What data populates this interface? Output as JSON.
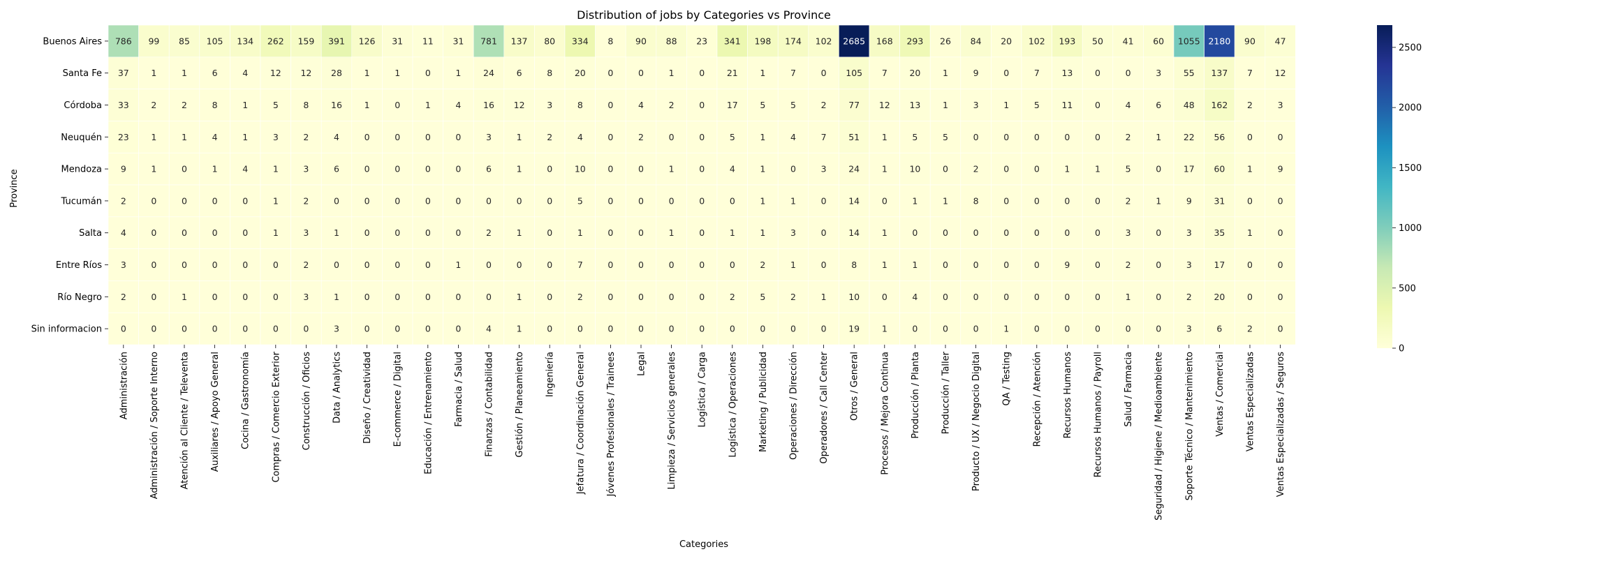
{
  "chart_data": {
    "type": "heatmap",
    "title": "Distribution of jobs by Categories vs Province",
    "xlabel": "Categories",
    "ylabel": "Province",
    "colormap": "YlGnBu",
    "colors": [
      "#ffffd9",
      "#edf8b1",
      "#c7e9b4",
      "#7fcdbb",
      "#41b6c4",
      "#1d91c0",
      "#225ea8",
      "#253494",
      "#081d58"
    ],
    "vmin": 0,
    "vmax": 2685,
    "colorbar_ticks": [
      0,
      500,
      1000,
      1500,
      2000,
      2500
    ],
    "rows": [
      "Buenos Aires",
      "Santa Fe",
      "Córdoba",
      "Neuquén",
      "Mendoza",
      "Tucumán",
      "Salta",
      "Entre Ríos",
      "Río Negro",
      "Sin informacion"
    ],
    "columns": [
      "Administración",
      "Administración / Soporte Interno",
      "Atención al Cliente / Televenta",
      "Auxiliares / Apoyo General",
      "Cocina / Gastronomía",
      "Compras / Comercio Exterior",
      "Construcción / Oficios",
      "Data / Analytics",
      "Diseño / Creatividad",
      "E-commerce / Digital",
      "Educación / Entrenamiento",
      "Farmacia / Salud",
      "Finanzas / Contabilidad",
      "Gestión / Planeamiento",
      "Ingeniería",
      "Jefatura / Coordinación General",
      "Jóvenes Profesionales / Trainees",
      "Legal",
      "Limpieza / Servicios generales",
      "Logística / Carga",
      "Logística / Operaciones",
      "Marketing / Publicidad",
      "Operaciones / Dirección",
      "Operadores / Call Center",
      "Otros / General",
      "Procesos / Mejora Continua",
      "Producción / Planta",
      "Producción / Taller",
      "Producto / UX / Negocio Digital",
      "QA / Testing",
      "Recepción / Atención",
      "Recursos Humanos",
      "Recursos Humanos / Payroll",
      "Salud / Farmacia",
      "Seguridad / Higiene / Medioambiente",
      "Soporte Técnico / Mantenimiento",
      "Ventas / Comercial",
      "Ventas Especializadas",
      "Ventas Especializadas / Seguros"
    ],
    "values": [
      [
        786,
        99,
        85,
        105,
        134,
        262,
        159,
        391,
        126,
        31,
        11,
        31,
        781,
        137,
        80,
        334,
        8,
        90,
        88,
        23,
        341,
        198,
        174,
        102,
        2685,
        168,
        293,
        26,
        84,
        20,
        102,
        193,
        50,
        41,
        60,
        1055,
        2180,
        90,
        47
      ],
      [
        37,
        1,
        1,
        6,
        4,
        12,
        12,
        28,
        1,
        1,
        0,
        1,
        24,
        6,
        8,
        20,
        0,
        0,
        1,
        0,
        21,
        1,
        7,
        0,
        105,
        7,
        20,
        1,
        9,
        0,
        7,
        13,
        0,
        0,
        3,
        55,
        137,
        7,
        12
      ],
      [
        33,
        2,
        2,
        8,
        1,
        5,
        8,
        16,
        1,
        0,
        1,
        4,
        16,
        12,
        3,
        8,
        0,
        4,
        2,
        0,
        17,
        5,
        5,
        2,
        77,
        12,
        13,
        1,
        3,
        1,
        5,
        11,
        0,
        4,
        6,
        48,
        162,
        2,
        3
      ],
      [
        23,
        1,
        1,
        4,
        1,
        3,
        2,
        4,
        0,
        0,
        0,
        0,
        3,
        1,
        2,
        4,
        0,
        2,
        0,
        0,
        5,
        1,
        4,
        7,
        51,
        1,
        5,
        5,
        0,
        0,
        0,
        0,
        0,
        2,
        1,
        22,
        56,
        0,
        0
      ],
      [
        9,
        1,
        0,
        1,
        4,
        1,
        3,
        6,
        0,
        0,
        0,
        0,
        6,
        1,
        0,
        10,
        0,
        0,
        1,
        0,
        4,
        1,
        0,
        3,
        24,
        1,
        10,
        0,
        2,
        0,
        0,
        1,
        1,
        5,
        0,
        17,
        60,
        1,
        9
      ],
      [
        2,
        0,
        0,
        0,
        0,
        1,
        2,
        0,
        0,
        0,
        0,
        0,
        0,
        0,
        0,
        5,
        0,
        0,
        0,
        0,
        0,
        1,
        1,
        0,
        14,
        0,
        1,
        1,
        8,
        0,
        0,
        0,
        0,
        2,
        1,
        9,
        31,
        0,
        0
      ],
      [
        4,
        0,
        0,
        0,
        0,
        1,
        3,
        1,
        0,
        0,
        0,
        0,
        2,
        1,
        0,
        1,
        0,
        0,
        1,
        0,
        1,
        1,
        3,
        0,
        14,
        1,
        0,
        0,
        0,
        0,
        0,
        0,
        0,
        3,
        0,
        3,
        35,
        1,
        0
      ],
      [
        3,
        0,
        0,
        0,
        0,
        0,
        2,
        0,
        0,
        0,
        0,
        1,
        0,
        0,
        0,
        7,
        0,
        0,
        0,
        0,
        0,
        2,
        1,
        0,
        8,
        1,
        1,
        0,
        0,
        0,
        0,
        9,
        0,
        2,
        0,
        3,
        17,
        0,
        0
      ],
      [
        2,
        0,
        1,
        0,
        0,
        0,
        3,
        1,
        0,
        0,
        0,
        0,
        0,
        1,
        0,
        2,
        0,
        0,
        0,
        0,
        2,
        5,
        2,
        1,
        10,
        0,
        4,
        0,
        0,
        0,
        0,
        0,
        0,
        1,
        0,
        2,
        20,
        0,
        0
      ],
      [
        0,
        0,
        0,
        0,
        0,
        0,
        0,
        3,
        0,
        0,
        0,
        0,
        4,
        1,
        0,
        0,
        0,
        0,
        0,
        0,
        0,
        0,
        0,
        0,
        19,
        1,
        0,
        0,
        0,
        1,
        0,
        0,
        0,
        0,
        0,
        3,
        6,
        2,
        0
      ]
    ]
  }
}
